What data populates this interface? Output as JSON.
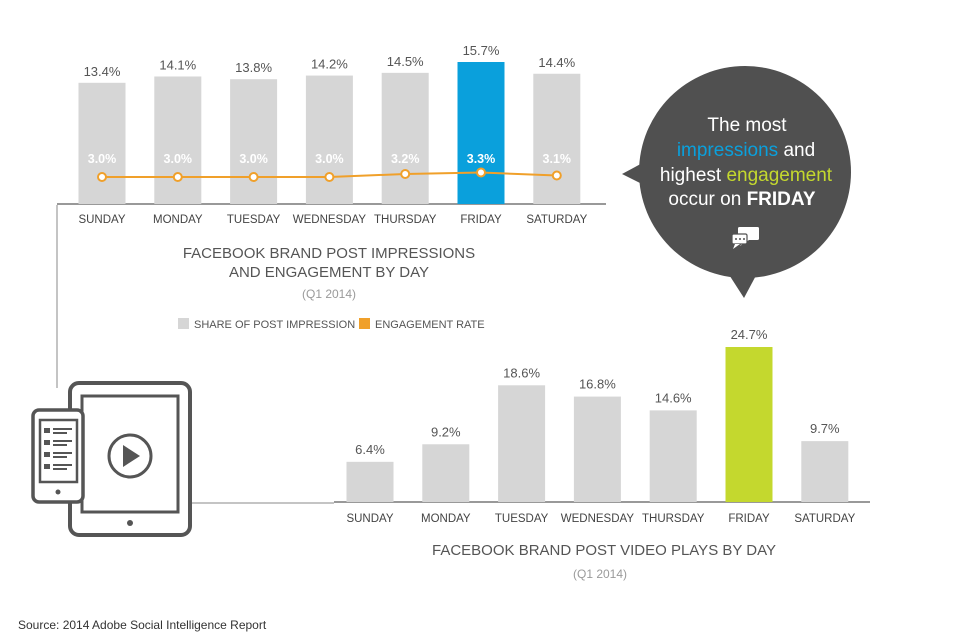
{
  "colors": {
    "bar_default": "#d6d6d6",
    "friday_impressions": "#0aa0dc",
    "friday_video": "#c4d82e",
    "engagement_line": "#f0a02a",
    "bubble_bg": "#505050",
    "axis_line": "#333333",
    "text_gray": "#555555",
    "sub_gray": "#9a9a9a",
    "icon_gray": "#555555"
  },
  "chart_data": [
    {
      "type": "bar",
      "title": "FACEBOOK BRAND POST IMPRESSIONS\nAND ENGAGEMENT BY DAY",
      "subtitle": "(Q1 2014)",
      "categories": [
        "SUNDAY",
        "MONDAY",
        "TUESDAY",
        "WEDNESDAY",
        "THURSDAY",
        "FRIDAY",
        "SATURDAY"
      ],
      "series": [
        {
          "name": "SHARE OF POST IMPRESSION",
          "kind": "bar",
          "values": [
            13.4,
            14.1,
            13.8,
            14.2,
            14.5,
            15.7,
            14.4
          ],
          "labels": [
            "13.4%",
            "14.1%",
            "13.8%",
            "14.2%",
            "14.5%",
            "15.7%",
            "14.4%"
          ]
        },
        {
          "name": "ENGAGEMENT RATE",
          "kind": "line",
          "values": [
            3.0,
            3.0,
            3.0,
            3.0,
            3.2,
            3.3,
            3.1
          ],
          "labels": [
            "3.0%",
            "3.0%",
            "3.0%",
            "3.0%",
            "3.2%",
            "3.3%",
            "3.1%"
          ]
        }
      ],
      "highlight_category": "FRIDAY",
      "legend_position": "bottom"
    },
    {
      "type": "bar",
      "title": "FACEBOOK BRAND POST VIDEO PLAYS BY DAY",
      "subtitle": "(Q1 2014)",
      "categories": [
        "SUNDAY",
        "MONDAY",
        "TUESDAY",
        "WEDNESDAY",
        "THURSDAY",
        "FRIDAY",
        "SATURDAY"
      ],
      "values": [
        6.4,
        9.2,
        18.6,
        16.8,
        14.6,
        24.7,
        9.7
      ],
      "labels": [
        "6.4%",
        "9.2%",
        "18.6%",
        "16.8%",
        "14.6%",
        "24.7%",
        "9.7%"
      ],
      "highlight_category": "FRIDAY"
    }
  ],
  "callout": {
    "line1": "The most",
    "line2_highlight": "impressions",
    "line2_rest": " and",
    "line3_pre": "highest ",
    "line3_highlight": "engagement",
    "line4_pre": "occur on ",
    "line4_bold": "FRIDAY",
    "highlight_color_impressions": "#0aa0dc",
    "highlight_color_engagement": "#c4d82e",
    "icon": "chat-bubbles-icon"
  },
  "device_icons": [
    "phone-icon",
    "tablet-icon",
    "play-icon"
  ],
  "source": "Source: 2014 Adobe Social Intelligence Report"
}
